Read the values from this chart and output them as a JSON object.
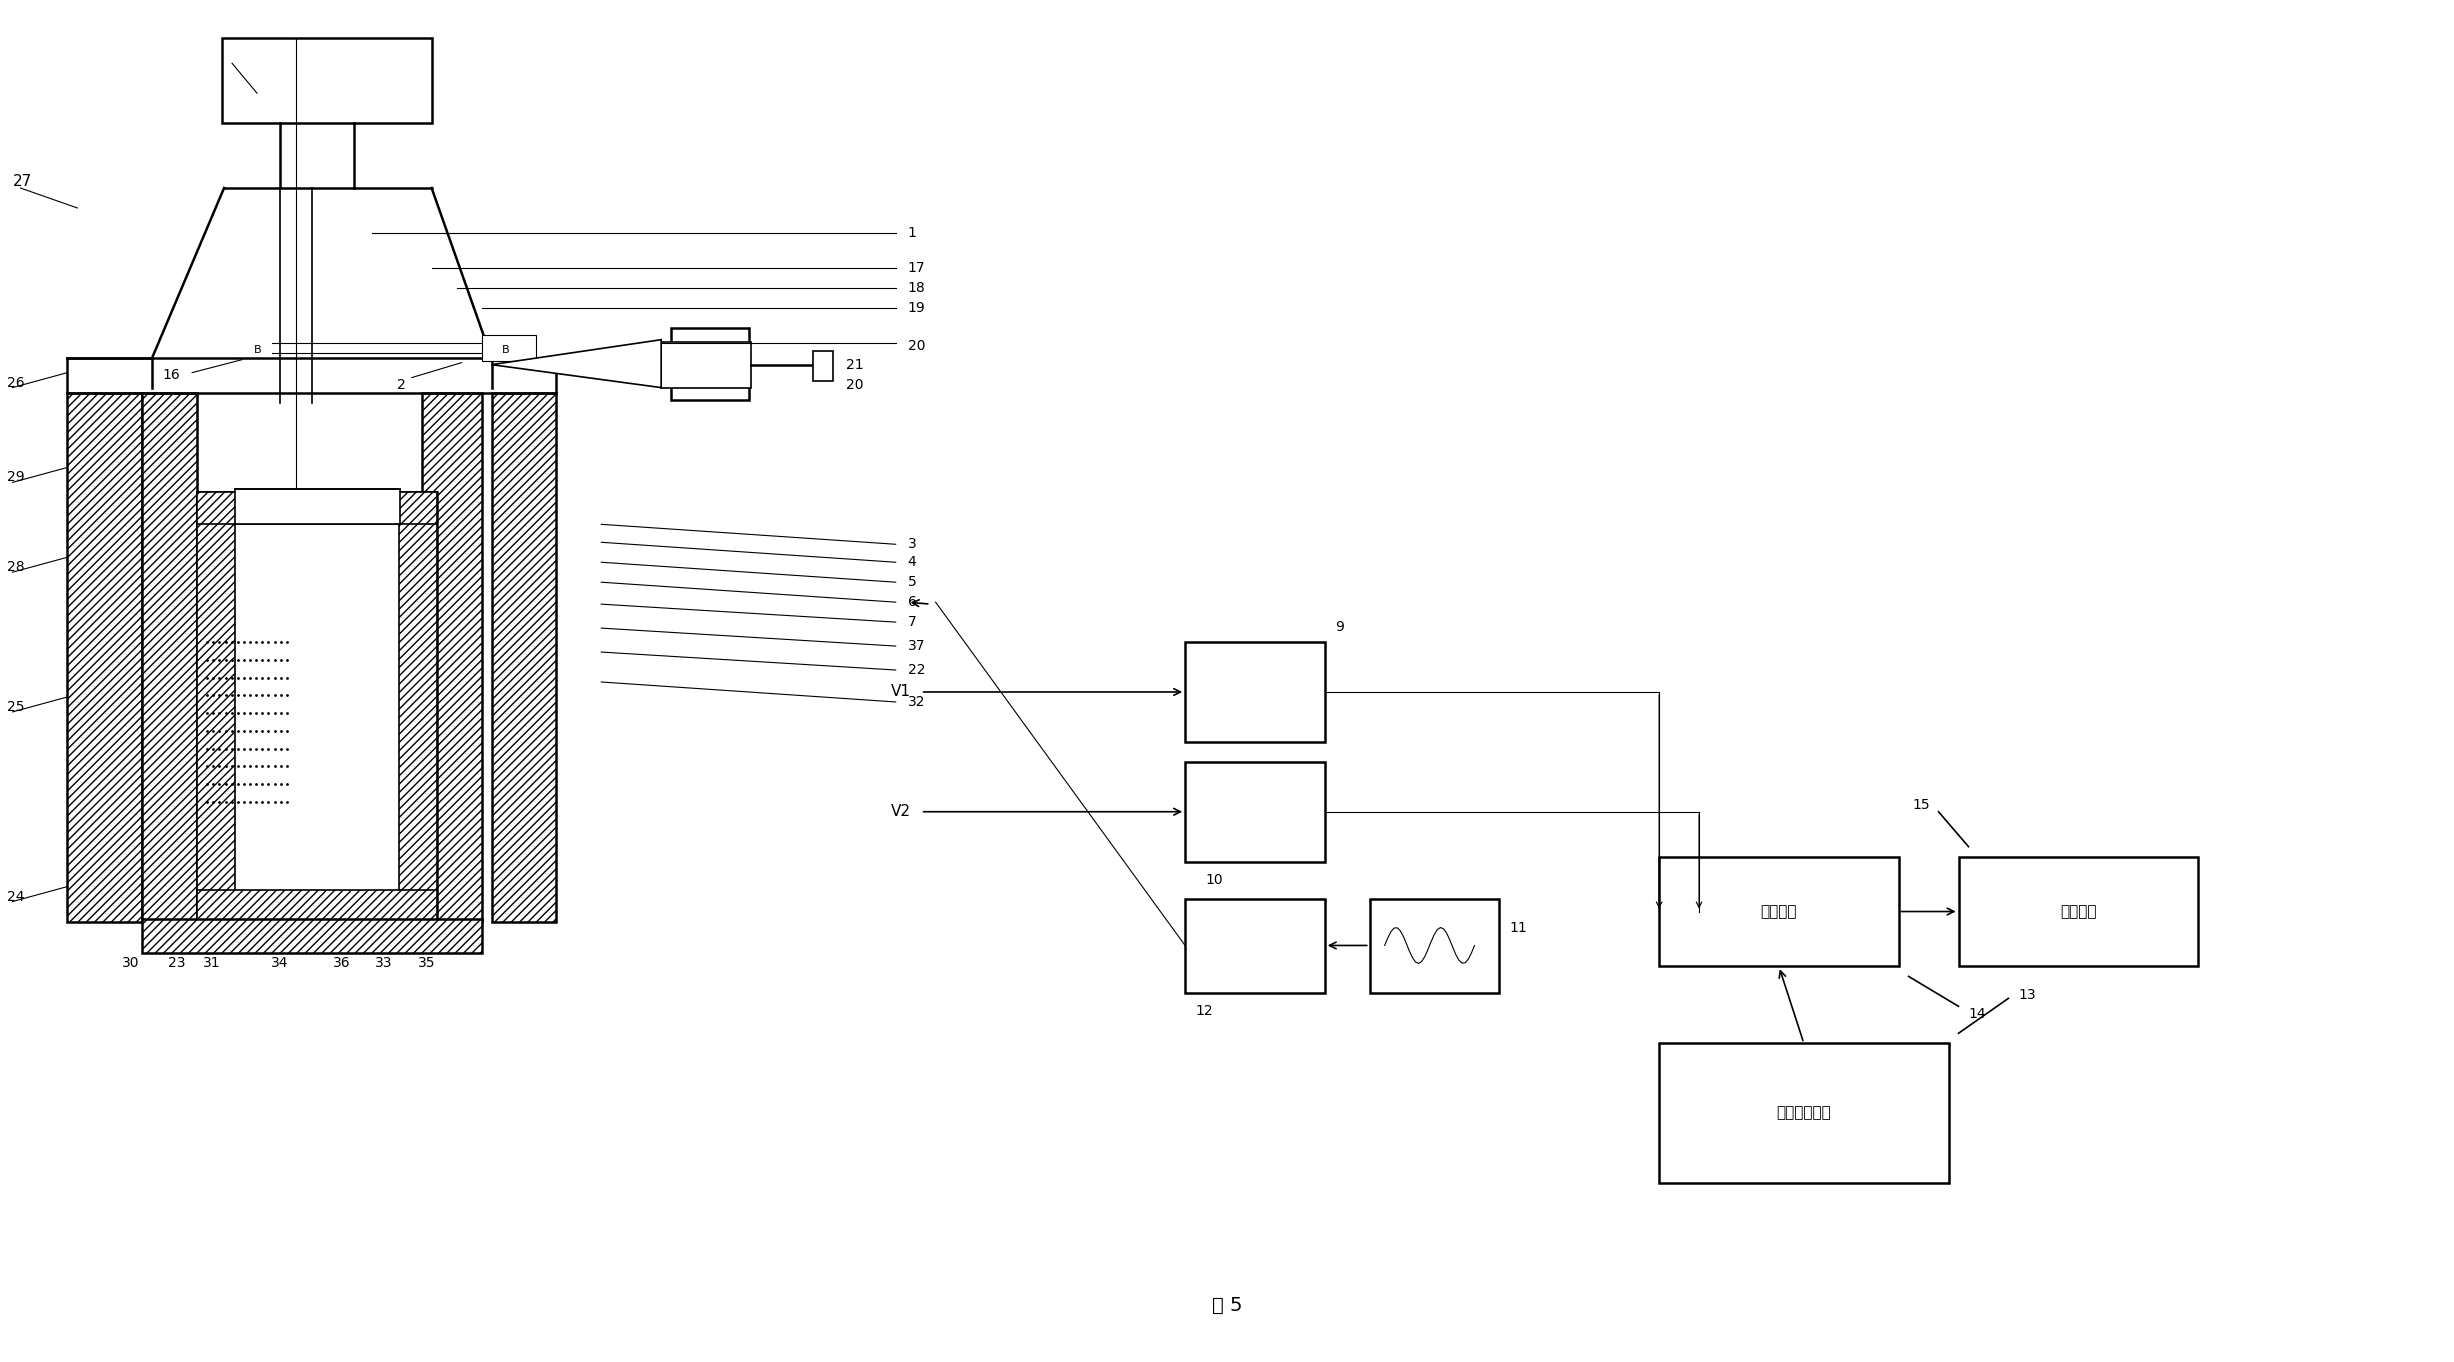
{
  "bg_color": "#ffffff",
  "line_color": "#000000",
  "fig_label": "图 5",
  "data_input_text": "数据输入部分",
  "data_process_text": "数据处理",
  "display_text": "显示输出",
  "V1": "V1",
  "V2": "V2",
  "label_B1": "B",
  "label_B2": "B",
  "label_2": "2",
  "label_16": "16",
  "labels_right_top": [
    "1",
    "17",
    "18",
    "19",
    "20",
    "21"
  ],
  "labels_right_mid": [
    "3",
    "4",
    "5",
    "6",
    "7",
    "37",
    "22",
    "32"
  ],
  "labels_left": [
    "27",
    "26",
    "29",
    "28",
    "25",
    "24"
  ],
  "labels_bottom": [
    "30",
    "23",
    "31",
    "34",
    "36",
    "33",
    "35"
  ],
  "block_nums": [
    "9",
    "10",
    "11",
    "12",
    "13",
    "14",
    "15"
  ]
}
